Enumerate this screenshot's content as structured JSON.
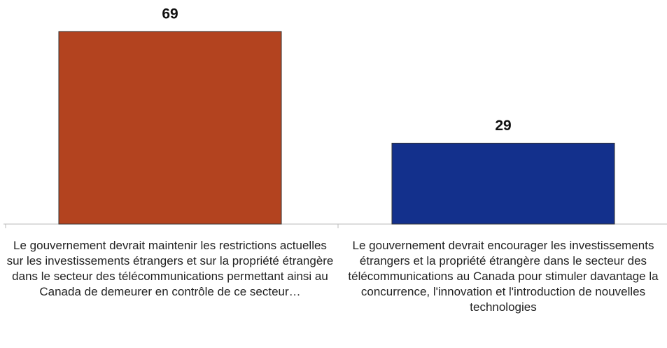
{
  "chart_data": {
    "type": "bar",
    "categories": [
      "Le gouvernement devrait maintenir les restrictions actuelles sur les investissements étrangers et sur la propriété étrangère dans le secteur des télécommunications permettant ainsi au Canada de demeurer en contrôle de ce secteur…",
      "Le gouvernement devrait encourager les investissements étrangers et la propriété étrangère dans le secteur des télécommunications au Canada pour stimuler davantage la concurrence, l'innovation et l'introduction de nouvelles technologies"
    ],
    "values": [
      69,
      29
    ],
    "colors": [
      "#b3431f",
      "#13308c"
    ]
  }
}
